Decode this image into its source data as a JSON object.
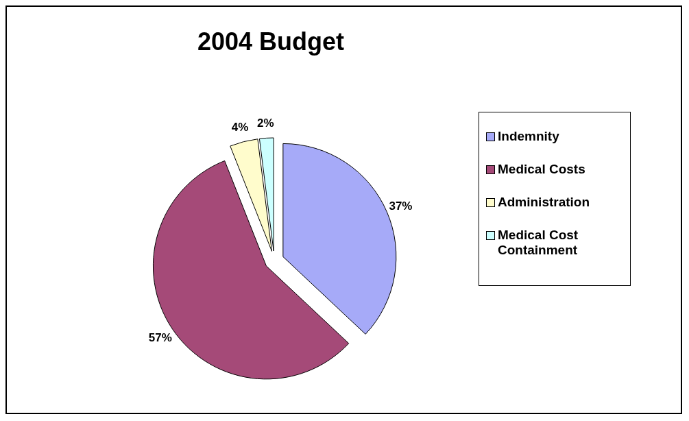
{
  "chart_data": {
    "type": "pie",
    "title": "2004 Budget",
    "categories": [
      "Indemnity",
      "Medical Costs",
      "Administration",
      "Medical Cost Containment"
    ],
    "values": [
      37,
      57,
      4,
      2
    ],
    "value_labels": [
      "37%",
      "57%",
      "4%",
      "2%"
    ],
    "colors": [
      "#a6aaf8",
      "#a54a78",
      "#fffccc",
      "#ccffff"
    ],
    "legend": "right"
  }
}
